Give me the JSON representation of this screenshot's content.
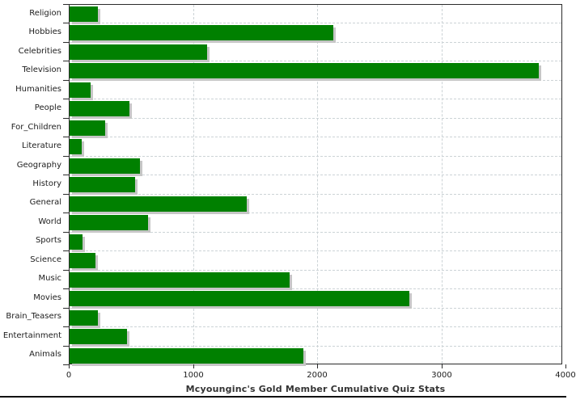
{
  "chart_data": {
    "type": "bar",
    "orientation": "horizontal",
    "title": "Mcyounginc's Gold Member Cumulative Quiz Stats",
    "categories": [
      "Religion",
      "Hobbies",
      "Celebrities",
      "Television",
      "Humanities",
      "People",
      "For_Children",
      "Literature",
      "Geography",
      "History",
      "General",
      "World",
      "Sports",
      "Science",
      "Music",
      "Movies",
      "Brain_Teasers",
      "Entertainment",
      "Animals"
    ],
    "values": [
      225,
      2125,
      1105,
      3780,
      170,
      480,
      285,
      95,
      570,
      530,
      1425,
      630,
      105,
      210,
      1775,
      2735,
      230,
      465,
      1880
    ],
    "xlabel": "",
    "ylabel": "",
    "xlim": [
      0,
      4000
    ],
    "x_ticks": [
      0,
      1000,
      2000,
      3000,
      4000
    ],
    "x_tick_labels": [
      "0",
      "1000",
      "2000",
      "3000",
      "4000"
    ],
    "grid": "dashed",
    "legend": "none",
    "bar_color": "#008000",
    "bar_shadow_color": "#c6c6c6",
    "grid_color": "#ccd3d6",
    "axis_color": "#2b2b2b"
  }
}
